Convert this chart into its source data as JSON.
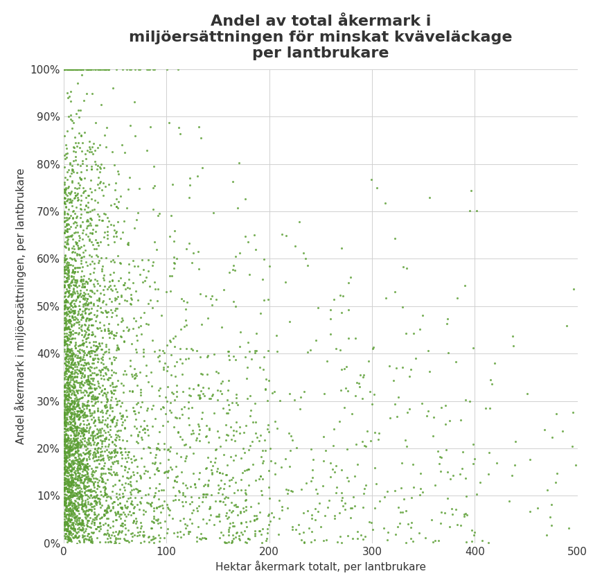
{
  "title": "Andel av total åkermark i\nmiljöersättningen för minskat kväveläckage\nper lantbrukare",
  "xlabel": "Hektar åkermark totalt, per lantbrukare",
  "ylabel": "Andel åkermark i miljöersättningen, per lantbrukare",
  "xlim": [
    0,
    500
  ],
  "ylim": [
    0,
    1.0
  ],
  "xticks": [
    0,
    100,
    200,
    300,
    400,
    500
  ],
  "yticks": [
    0.0,
    0.1,
    0.2,
    0.3,
    0.4,
    0.5,
    0.6,
    0.7,
    0.8,
    0.9,
    1.0
  ],
  "dot_color": "#5a9e32",
  "dot_size": 5,
  "dot_alpha": 0.8,
  "n_points": 4500,
  "seed": 42,
  "background_color": "#ffffff",
  "title_fontsize": 16,
  "label_fontsize": 11,
  "tick_fontsize": 11
}
